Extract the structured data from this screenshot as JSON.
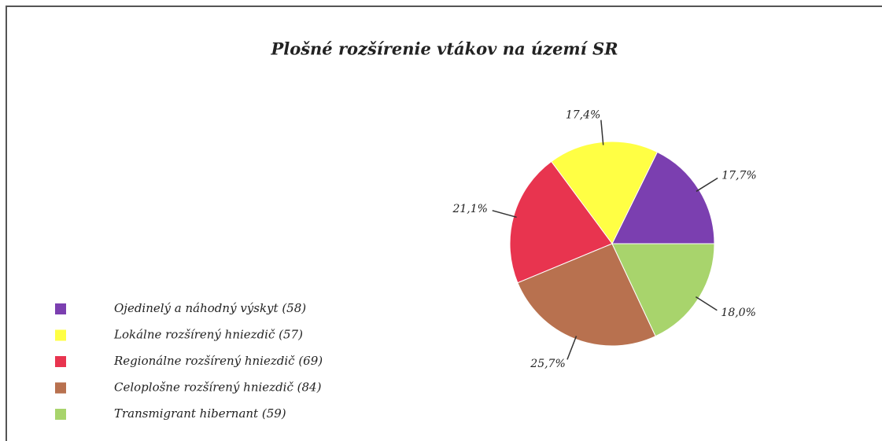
{
  "chart_data": {
    "type": "pie",
    "title": "Plošné rozšírenie vtákov na území SR",
    "categories": [
      "Ojedinelý a náhodný výskyt (58)",
      "Lokálne rozšírený hniezdič (57)",
      "Regionálne rozšírený hniezdič (69)",
      "Celoplošne rozšírený hniezdič (84)",
      "Transmigrant hibernant (59)"
    ],
    "values": [
      17.7,
      17.4,
      21.1,
      25.7,
      18.0
    ],
    "value_labels": [
      "17,7%",
      "17,4%",
      "21,1%",
      "25,7%",
      "18,0%"
    ],
    "colors": [
      "#7b3fb0",
      "#ffff44",
      "#e8344f",
      "#b8714f",
      "#a8d46c"
    ],
    "legend": "bottom-left"
  }
}
